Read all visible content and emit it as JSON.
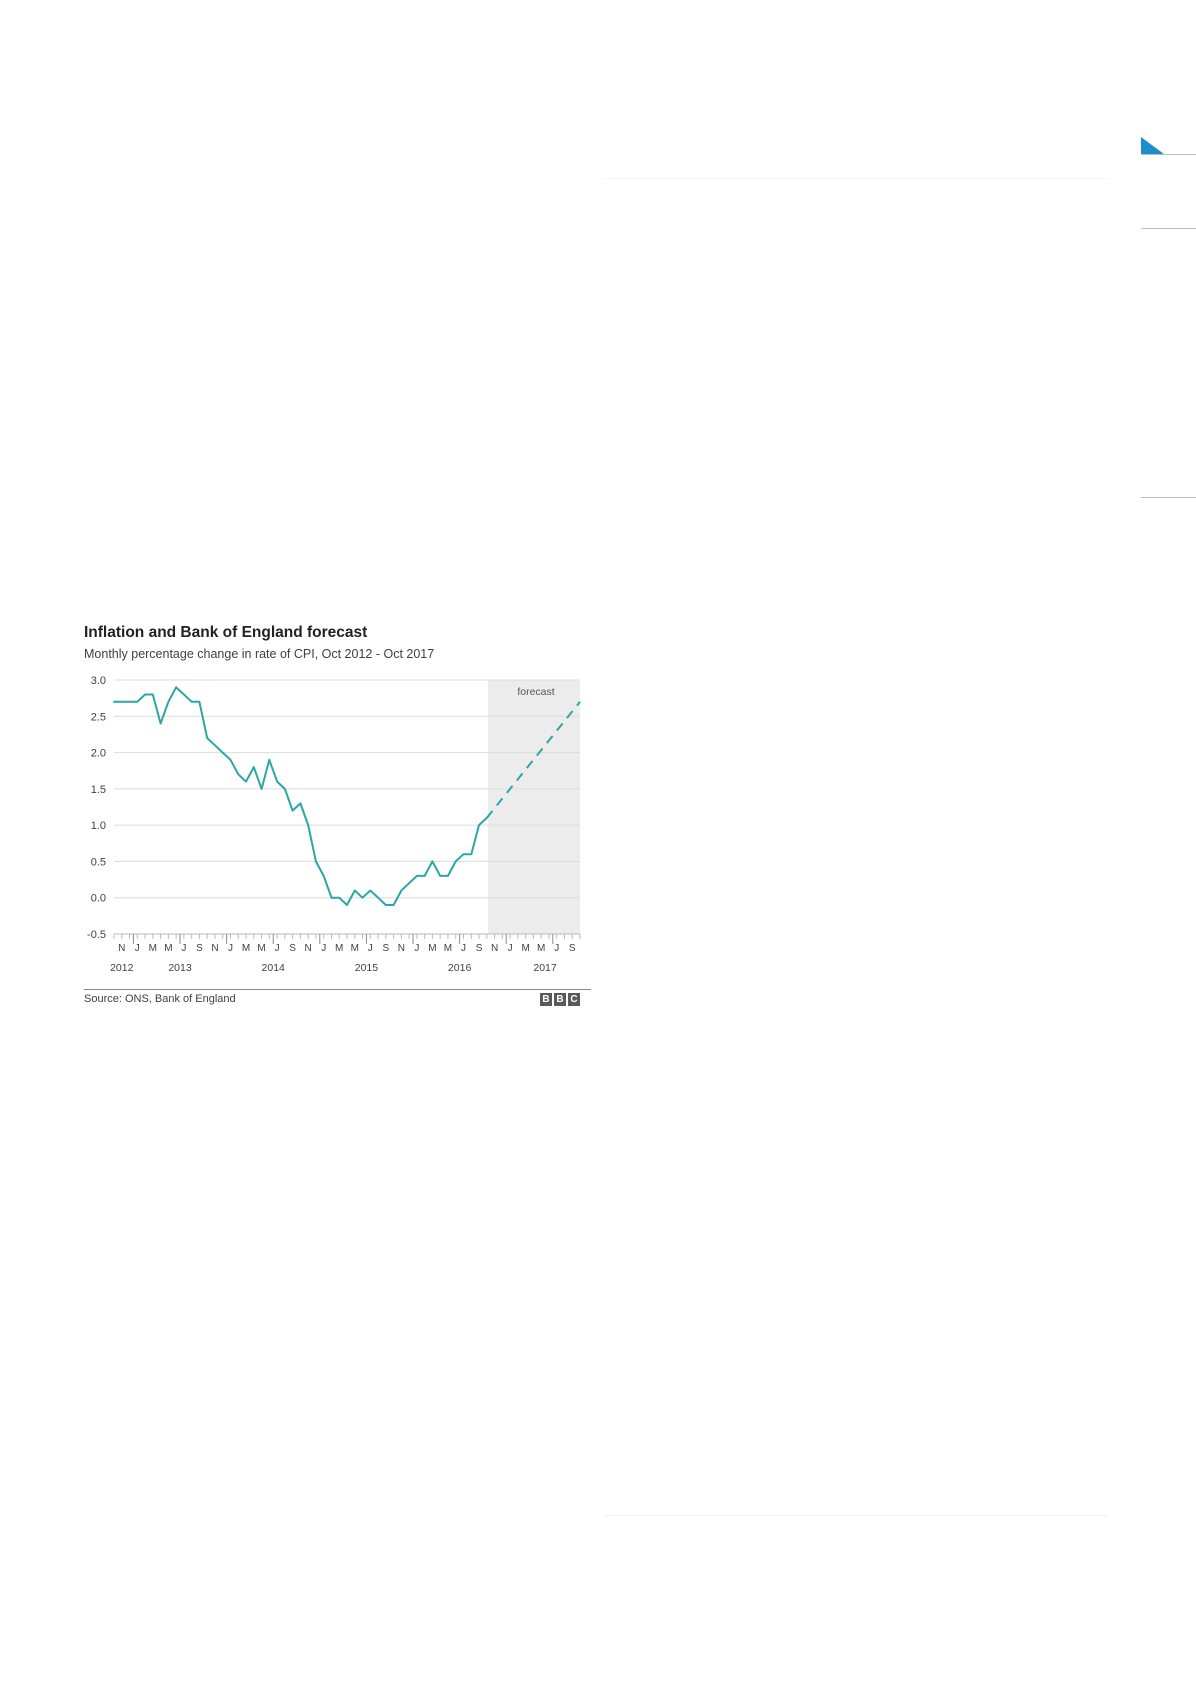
{
  "page": {
    "accent_color": "#1a8fcf"
  },
  "chart_data": {
    "type": "line",
    "title": "Inflation and Bank of England forecast",
    "subtitle": "Monthly percentage change in rate of CPI, Oct 2012 - Oct 2017",
    "ylim": [
      -0.5,
      3.0
    ],
    "yticks": [
      "3.0",
      "2.5",
      "2.0",
      "1.5",
      "1.0",
      "0.5",
      "0.0",
      "-0.5"
    ],
    "month_ticks": [
      "N",
      "J",
      "M",
      "M",
      "J",
      "S",
      "N",
      "J",
      "M",
      "M",
      "J",
      "S",
      "N",
      "J",
      "M",
      "M",
      "J",
      "S",
      "N",
      "J",
      "M",
      "M",
      "J",
      "S",
      "N",
      "J",
      "M",
      "M",
      "J",
      "S"
    ],
    "year_labels": [
      "2012",
      "2013",
      "2014",
      "2015",
      "2016",
      "2017"
    ],
    "forecast_label": "forecast",
    "grid": true,
    "colors": {
      "line": "#2aa6a8",
      "forecast_band": "#ececec",
      "grid": "#dcdcdc"
    },
    "series": [
      {
        "style": "solid",
        "x": [
          "2012-10",
          "2012-11",
          "2012-12",
          "2013-01",
          "2013-02",
          "2013-03",
          "2013-04",
          "2013-05",
          "2013-06",
          "2013-07",
          "2013-08",
          "2013-09",
          "2013-10",
          "2013-11",
          "2013-12",
          "2014-01",
          "2014-02",
          "2014-03",
          "2014-04",
          "2014-05",
          "2014-06",
          "2014-07",
          "2014-08",
          "2014-09",
          "2014-10",
          "2014-11",
          "2014-12",
          "2015-01",
          "2015-02",
          "2015-03",
          "2015-04",
          "2015-05",
          "2015-06",
          "2015-07",
          "2015-08",
          "2015-09",
          "2015-10",
          "2015-11",
          "2015-12",
          "2016-01",
          "2016-02",
          "2016-03",
          "2016-04",
          "2016-05",
          "2016-06",
          "2016-07",
          "2016-08",
          "2016-09",
          "2016-10"
        ],
        "values": [
          2.7,
          2.7,
          2.7,
          2.7,
          2.8,
          2.8,
          2.4,
          2.7,
          2.9,
          2.8,
          2.7,
          2.7,
          2.2,
          2.1,
          2.0,
          1.9,
          1.7,
          1.6,
          1.8,
          1.5,
          1.9,
          1.6,
          1.5,
          1.2,
          1.3,
          1.0,
          0.5,
          0.3,
          0.0,
          0.0,
          -0.1,
          0.1,
          0.0,
          0.1,
          0.0,
          -0.1,
          -0.1,
          0.1,
          0.2,
          0.3,
          0.3,
          0.5,
          0.3,
          0.3,
          0.5,
          0.6,
          0.6,
          1.0,
          1.1
        ]
      },
      {
        "style": "dashed",
        "label": "forecast",
        "x": [
          "2016-10",
          "2017-10"
        ],
        "values": [
          1.1,
          2.7
        ]
      }
    ],
    "source": "Source: ONS, Bank of England",
    "logo": [
      "B",
      "B",
      "C"
    ]
  }
}
